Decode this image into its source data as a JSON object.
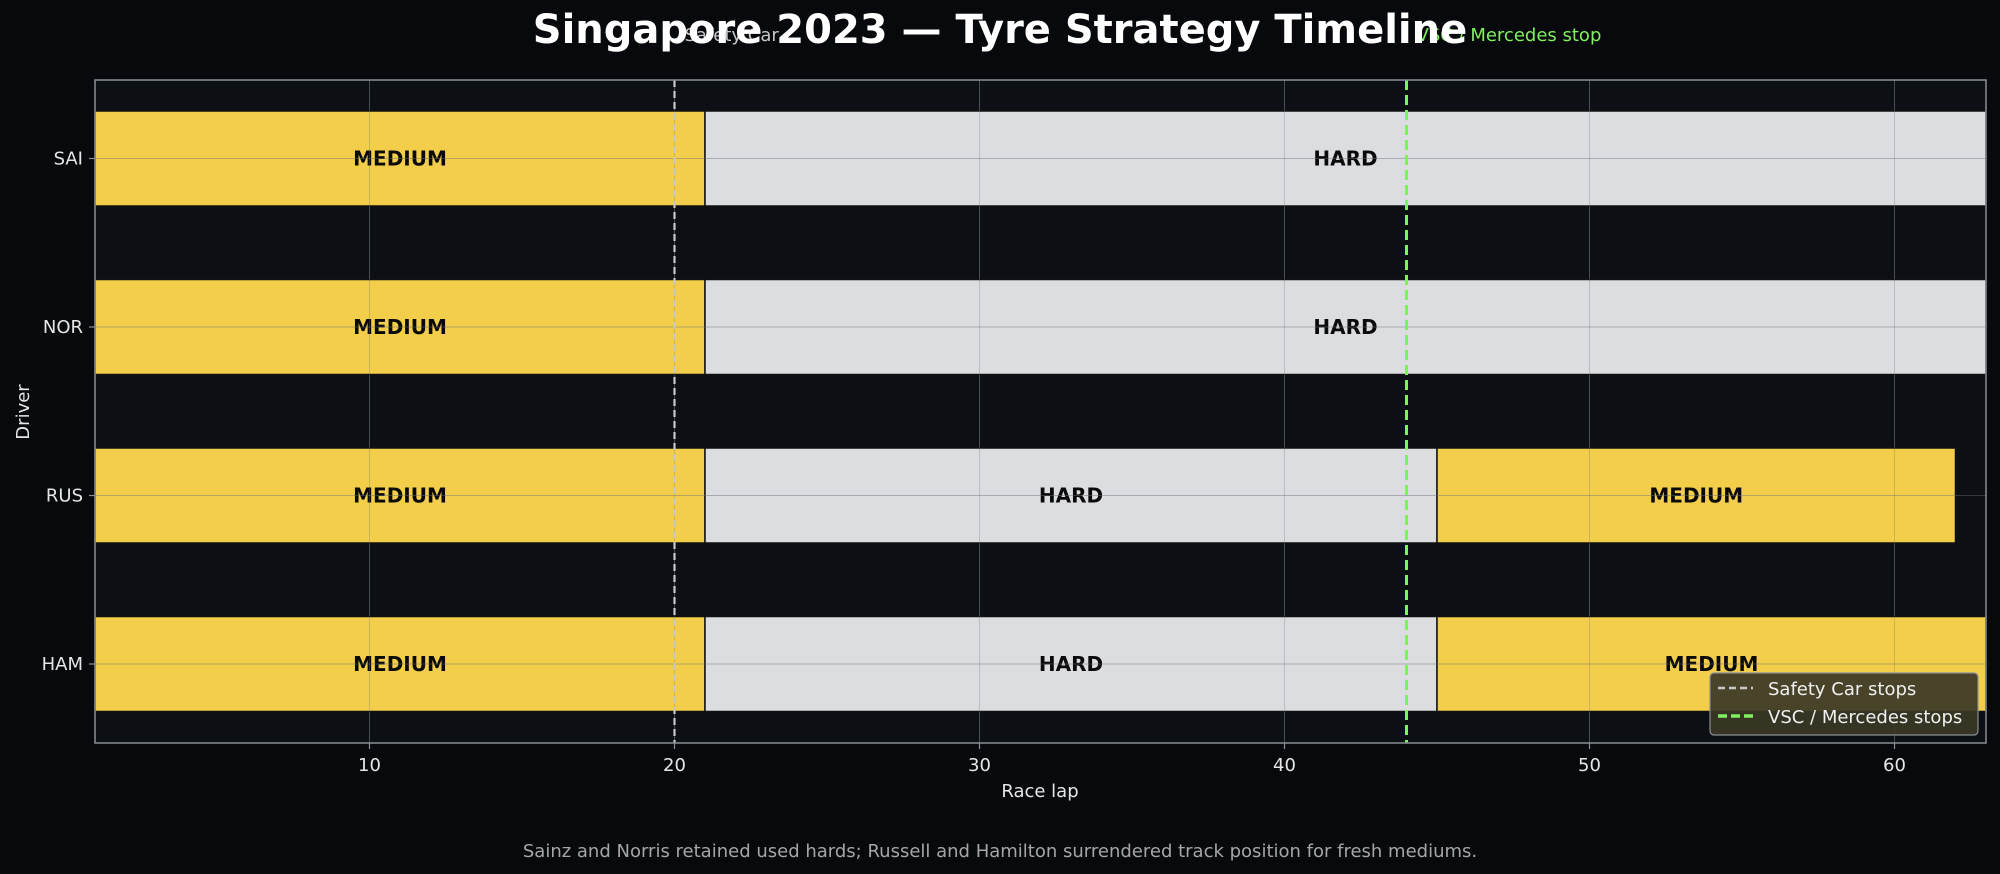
{
  "chart_data": {
    "type": "bar",
    "orientation": "horizontal-stacked-timeline",
    "title": "Singapore 2023 — Tyre Strategy Timeline",
    "xlabel": "Race lap",
    "ylabel": "Driver",
    "xlim": [
      1,
      63
    ],
    "xticks": [
      10,
      20,
      30,
      40,
      50,
      60
    ],
    "grid": true,
    "drivers": [
      "SAI",
      "NOR",
      "RUS",
      "HAM"
    ],
    "stints": [
      {
        "driver": "SAI",
        "compound": "MEDIUM",
        "start": 1,
        "end": 21
      },
      {
        "driver": "SAI",
        "compound": "HARD",
        "start": 21,
        "end": 63
      },
      {
        "driver": "NOR",
        "compound": "MEDIUM",
        "start": 1,
        "end": 21
      },
      {
        "driver": "NOR",
        "compound": "HARD",
        "start": 21,
        "end": 63
      },
      {
        "driver": "RUS",
        "compound": "MEDIUM",
        "start": 1,
        "end": 21
      },
      {
        "driver": "RUS",
        "compound": "HARD",
        "start": 21,
        "end": 45
      },
      {
        "driver": "RUS",
        "compound": "MEDIUM",
        "start": 45,
        "end": 62
      },
      {
        "driver": "HAM",
        "compound": "MEDIUM",
        "start": 1,
        "end": 21
      },
      {
        "driver": "HAM",
        "compound": "HARD",
        "start": 21,
        "end": 45
      },
      {
        "driver": "HAM",
        "compound": "MEDIUM",
        "start": 45,
        "end": 63
      }
    ],
    "compound_colors": {
      "MEDIUM": "#f2ce4b",
      "HARD": "#dcdde1"
    },
    "events": [
      {
        "label": "Safety Car",
        "lap": 20,
        "color": "#c8c8c8",
        "style": "dashed-thin"
      },
      {
        "label": "VSC / Mercedes stop",
        "lap": 44,
        "color": "#7ff060",
        "style": "dashed-thick"
      }
    ],
    "legend": {
      "placement": "lower-right",
      "entries": [
        {
          "label": "Safety Car stops",
          "color": "#c8c8c8"
        },
        {
          "label": "VSC / Mercedes stops",
          "color": "#7ff060"
        }
      ]
    },
    "caption": "Sainz and Norris retained used hards; Russell and Hamilton surrendered track position for fresh mediums."
  },
  "colors": {
    "background": "#07090c",
    "plot_background": "#0c1015",
    "grid": "#3a3f46",
    "axes_border": "#8a8f96"
  }
}
